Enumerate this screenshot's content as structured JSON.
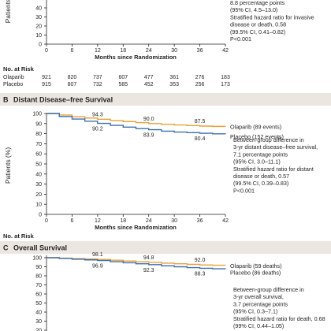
{
  "chart_data": [
    {
      "panel": "A",
      "type": "line",
      "title": "",
      "x_ticks": [
        0,
        6,
        12,
        18,
        24,
        30,
        36,
        42
      ],
      "y_ticks_visible": [
        0,
        10,
        20,
        30,
        40
      ],
      "ylabel": "Patients",
      "xlabel": "Months since Randomization",
      "annotation": [
        "8.8 percentage points",
        "(95% CI, 4.5–13.0)",
        "Stratified hazard ratio for invasive",
        "disease or death, 0.58",
        "(99.5% CI, 0.41–0.82)",
        "P<0.001"
      ],
      "risk_table": {
        "heading": "No. at Risk",
        "rows": [
          {
            "group": "Olaparib",
            "values": [
              "921",
              "820",
              "737",
              "607",
              "477",
              "361",
              "276",
              "183"
            ]
          },
          {
            "group": "Placebo",
            "values": [
              "915",
              "807",
              "732",
              "585",
              "452",
              "353",
              "256",
              "173"
            ]
          }
        ]
      }
    },
    {
      "panel": "B",
      "type": "line",
      "title": "Distant Disease–free Survival",
      "xlabel": "Months since Randomization",
      "ylabel": "Patients (%)",
      "xlim": [
        0,
        42
      ],
      "ylim": [
        0,
        100
      ],
      "x_ticks": [
        0,
        6,
        12,
        18,
        24,
        30,
        36,
        42
      ],
      "y_ticks": [
        0,
        10,
        20,
        30,
        40,
        50,
        60,
        70,
        80,
        90,
        100
      ],
      "series": [
        {
          "name": "Olaparib (89 events)",
          "color": "#e8a13a",
          "x": [
            0,
            3,
            6,
            9,
            12,
            15,
            18,
            21,
            24,
            27,
            30,
            33,
            36,
            39,
            42
          ],
          "y": [
            100,
            98.5,
            96.8,
            95.5,
            94.3,
            93.0,
            92.0,
            91.0,
            90.0,
            89.3,
            88.6,
            88.0,
            87.5,
            87.2,
            87.0
          ],
          "point_labels": [
            {
              "x": 12,
              "y": 94.3,
              "text": "94.3"
            },
            {
              "x": 24,
              "y": 90.0,
              "text": "90.0"
            },
            {
              "x": 36,
              "y": 87.5,
              "text": "87.5"
            }
          ]
        },
        {
          "name": "Placebo (152 events)",
          "color": "#3b6fb0",
          "x": [
            0,
            3,
            6,
            9,
            12,
            15,
            18,
            21,
            24,
            27,
            30,
            33,
            36,
            39,
            42
          ],
          "y": [
            100,
            97.0,
            94.5,
            92.3,
            90.2,
            88.2,
            86.5,
            85.0,
            83.9,
            82.5,
            81.6,
            81.0,
            80.4,
            79.8,
            79.5
          ],
          "point_labels": [
            {
              "x": 12,
              "y": 90.2,
              "text": "90.2"
            },
            {
              "x": 24,
              "y": 83.9,
              "text": "83.9"
            },
            {
              "x": 36,
              "y": 80.4,
              "text": "80.4"
            }
          ]
        }
      ],
      "annotation": [
        "Between-group difference in",
        "3-yr distant disease–free survival,",
        "7.1 percentage points",
        "(95% CI, 3.0–11.1)",
        "Stratified hazard ratio for distant",
        "disease or death, 0.57",
        "(99.5% CI, 0.39–0.83)",
        "P<0.001"
      ],
      "risk_table": {
        "heading": "No. at Risk",
        "rows": [
          {
            "group": "Olaparib",
            "values": [
              "921",
              "823",
              "744",
              "612",
              "479",
              "364",
              "279",
              "187"
            ]
          },
          {
            "group": "Placebo",
            "values": [
              "915",
              "817",
              "742",
              "594",
              "461",
              "359",
              "263",
              "179"
            ]
          }
        ]
      }
    },
    {
      "panel": "C",
      "type": "line",
      "title": "Overall Survival",
      "ylabel": "",
      "ylim": [
        0,
        100
      ],
      "y_ticks_visible": [
        100,
        90,
        80,
        70,
        60,
        50,
        40,
        30,
        20,
        10
      ],
      "series": [
        {
          "name": "Olaparib (59 deaths)",
          "color": "#e8a13a",
          "x": [
            0,
            3,
            6,
            9,
            12,
            15,
            18,
            21,
            24,
            27,
            30,
            33,
            36,
            39,
            42
          ],
          "y": [
            100,
            99.5,
            99.0,
            98.6,
            98.1,
            97.2,
            96.3,
            95.5,
            94.8,
            94.0,
            93.3,
            92.6,
            92.0,
            91.7,
            91.5
          ],
          "point_labels": [
            {
              "x": 12,
              "y": 98.1,
              "text": "98.1"
            },
            {
              "x": 24,
              "y": 94.8,
              "text": "94.8"
            },
            {
              "x": 36,
              "y": 92.0,
              "text": "92.0"
            }
          ]
        },
        {
          "name": "Placebo (86 deaths)",
          "color": "#3b6fb0",
          "x": [
            0,
            3,
            6,
            9,
            12,
            15,
            18,
            21,
            24,
            27,
            30,
            33,
            36,
            39,
            42
          ],
          "y": [
            100,
            99.2,
            98.3,
            97.6,
            96.9,
            95.6,
            94.4,
            93.3,
            92.3,
            91.0,
            90.0,
            89.1,
            88.3,
            87.8,
            87.5
          ],
          "point_labels": [
            {
              "x": 12,
              "y": 96.9,
              "text": "96.9"
            },
            {
              "x": 24,
              "y": 92.3,
              "text": "92.3"
            },
            {
              "x": 36,
              "y": 88.3,
              "text": "88.3"
            }
          ]
        }
      ],
      "annotation": [
        "Between-group difference in",
        "3-yr overall survival,",
        "3.7 percentage points",
        "(95% CI, 0.3–7.1)",
        "Stratified hazard ratio for death, 0.68",
        "(99% CI, 0.44–1.05)"
      ]
    }
  ]
}
